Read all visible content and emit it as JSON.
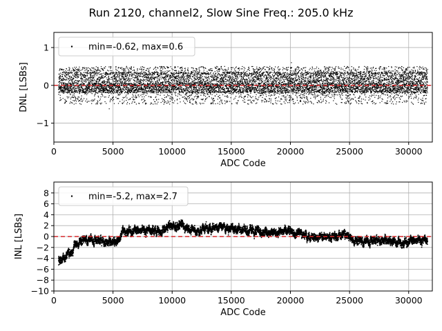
{
  "figure": {
    "title": "Run 2120, channel2, Slow Sine Freq.: 205.0 kHz"
  },
  "chart_data": [
    {
      "type": "scatter",
      "name": "dnl",
      "xlabel": "ADC Code",
      "ylabel": "DNL [LSBs]",
      "xlim": [
        0,
        32000
      ],
      "ylim": [
        -1.5,
        1.4
      ],
      "xticks": [
        0,
        5000,
        10000,
        15000,
        20000,
        25000,
        30000
      ],
      "yticks": [
        -1,
        0,
        1
      ],
      "grid": true,
      "legend": {
        "position": "top-left",
        "label": "min=-0.62, max=0.6"
      },
      "series": {
        "x_range": [
          400,
          31600
        ],
        "min": -0.62,
        "max": 0.6,
        "band_typical": [
          -0.2,
          0.35
        ],
        "color": "#000000"
      },
      "reference_line": {
        "y": 0,
        "color": "#d62728",
        "style": "dashed"
      }
    },
    {
      "type": "scatter",
      "name": "inl",
      "xlabel": "ADC Code",
      "ylabel": "INL [LSBs]",
      "xlim": [
        0,
        32000
      ],
      "ylim": [
        -10,
        10
      ],
      "xticks": [
        0,
        5000,
        10000,
        15000,
        20000,
        25000,
        30000
      ],
      "yticks": [
        -10,
        -8,
        -6,
        -4,
        -2,
        0,
        2,
        4,
        6,
        8
      ],
      "grid": true,
      "legend": {
        "position": "top-left",
        "label": "min=-5.2, max=2.7"
      },
      "series": {
        "min": -5.2,
        "max": 2.7,
        "color": "#000000",
        "trend_x": [
          400,
          1200,
          1600,
          1700,
          2200,
          3000,
          4000,
          4500,
          5500,
          5700,
          6000,
          8000,
          9000,
          10000,
          11000,
          12000,
          13000,
          14500,
          15500,
          16500,
          18000,
          20000,
          22000,
          24000,
          24200,
          26000,
          27000,
          28000,
          29500,
          30000,
          31600
        ],
        "trend_y": [
          -4.5,
          -3.3,
          -3.2,
          -1.5,
          -0.8,
          -0.6,
          -0.8,
          -1.0,
          -0.8,
          0.8,
          1.0,
          1.2,
          1.0,
          2.0,
          1.8,
          1.0,
          1.5,
          1.8,
          1.5,
          1.0,
          1.0,
          0.8,
          -0.2,
          0.0,
          0.5,
          -1.0,
          -0.8,
          -0.6,
          -1.2,
          -0.8,
          -0.6
        ]
      },
      "reference_line": {
        "y": 0,
        "color": "#d62728",
        "style": "dashed"
      }
    }
  ]
}
